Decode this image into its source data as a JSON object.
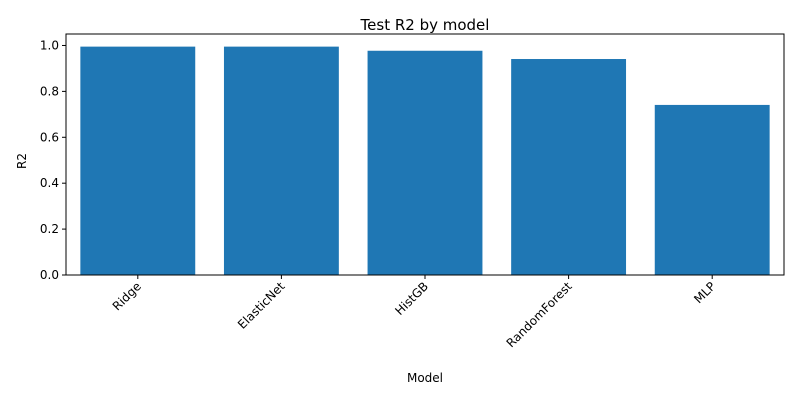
{
  "chart_data": {
    "type": "bar",
    "title": "Test R2 by model",
    "xlabel": "Model",
    "ylabel": "R2",
    "categories": [
      "Ridge",
      "ElasticNet",
      "HistGB",
      "RandomForest",
      "MLP"
    ],
    "values": [
      0.995,
      0.995,
      0.977,
      0.941,
      0.741
    ],
    "ylim": [
      0,
      1.05
    ],
    "yticks": [
      "0.0",
      "0.2",
      "0.4",
      "0.6",
      "0.8",
      "1.0"
    ],
    "bar_color": "#1f77b4",
    "grid": false,
    "legend": "none"
  }
}
